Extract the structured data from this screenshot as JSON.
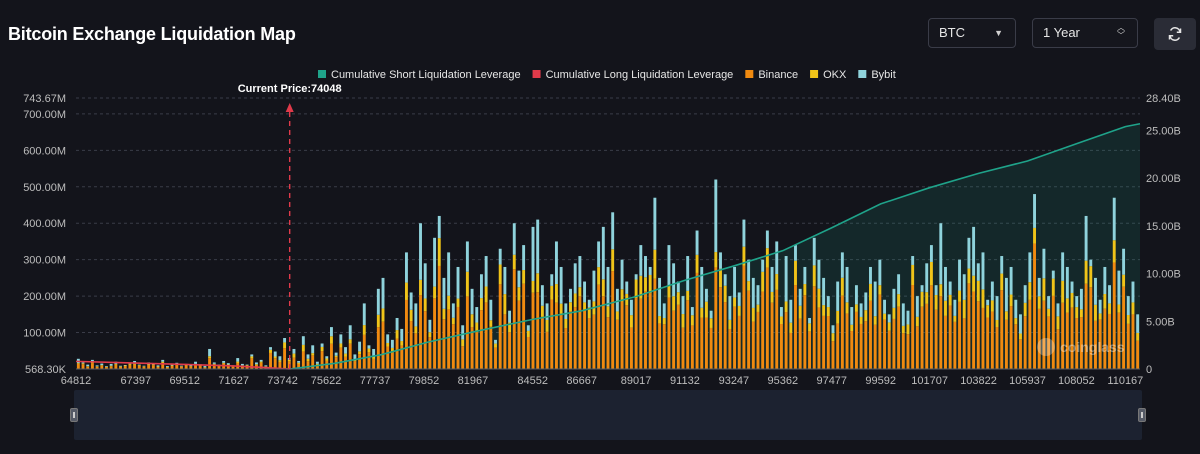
{
  "header": {
    "title": "Bitcoin Exchange Liquidation Map",
    "coin_select": "BTC",
    "range_select": "1 Year"
  },
  "watermark": "coinglass",
  "colors": {
    "cum_short": "#1fa38a",
    "cum_long": "#e03a4a",
    "binance": "#f08a10",
    "okx": "#f0c419",
    "bybit": "#8fd3dc",
    "current_price": "#e03a4a"
  },
  "chart_data": {
    "type": "bar",
    "title": "Bitcoin Exchange Liquidation Map",
    "legend": [
      {
        "name": "Cumulative Short Liquidation Leverage",
        "color": "#1fa38a"
      },
      {
        "name": "Cumulative Long Liquidation Leverage",
        "color": "#e03a4a"
      },
      {
        "name": "Binance",
        "color": "#f08a10"
      },
      {
        "name": "OKX",
        "color": "#f0c419"
      },
      {
        "name": "Bybit",
        "color": "#8fd3dc"
      }
    ],
    "legend_position": "top-center",
    "current_price_label": "Current Price:74048",
    "current_price": 74048,
    "x_range": [
      64812,
      110800
    ],
    "x_tick_labels": [
      "64812",
      "67397",
      "69512",
      "71627",
      "73742",
      "75622",
      "77737",
      "79852",
      "81967",
      "84552",
      "86667",
      "89017",
      "91132",
      "93247",
      "95362",
      "97477",
      "99592",
      "101707",
      "103822",
      "105937",
      "108052",
      "110167"
    ],
    "y_left_ticks": [
      "568.30K",
      "100.00M",
      "200.00M",
      "300.00M",
      "400.00M",
      "500.00M",
      "600.00M",
      "700.00M",
      "743.67M"
    ],
    "y_left_range": [
      0,
      743.67
    ],
    "y_right_ticks": [
      "0",
      "5.00B",
      "10.00B",
      "15.00B",
      "20.00B",
      "25.00B",
      "28.40B"
    ],
    "y_right_range": [
      0,
      28.4
    ],
    "grid": true,
    "bar_totals": [
      28,
      18,
      12,
      25,
      10,
      15,
      8,
      14,
      20,
      9,
      11,
      16,
      22,
      12,
      9,
      18,
      14,
      10,
      25,
      8,
      12,
      17,
      9,
      14,
      11,
      20,
      13,
      8,
      55,
      18,
      12,
      22,
      16,
      10,
      30,
      14,
      12,
      40,
      18,
      25,
      10,
      60,
      48,
      35,
      85,
      30,
      55,
      22,
      90,
      40,
      65,
      20,
      70,
      35,
      115,
      45,
      95,
      60,
      120,
      40,
      75,
      180,
      65,
      55,
      220,
      250,
      95,
      80,
      140,
      110,
      320,
      210,
      180,
      400,
      290,
      135,
      360,
      420,
      250,
      320,
      180,
      280,
      120,
      350,
      220,
      170,
      260,
      310,
      190,
      80,
      330,
      280,
      160,
      400,
      270,
      340,
      120,
      390,
      410,
      230,
      180,
      260,
      350,
      280,
      180,
      220,
      290,
      310,
      240,
      190,
      270,
      350,
      390,
      280,
      430,
      220,
      300,
      240,
      190,
      260,
      340,
      310,
      280,
      470,
      250,
      180,
      340,
      290,
      240,
      200,
      310,
      170,
      380,
      280,
      220,
      160,
      520,
      320,
      260,
      200,
      280,
      210,
      410,
      300,
      250,
      230,
      300,
      380,
      280,
      350,
      170,
      310,
      190,
      340,
      220,
      280,
      140,
      360,
      300,
      250,
      200,
      120,
      240,
      320,
      280,
      170,
      230,
      180,
      210,
      280,
      240,
      300,
      190,
      150,
      220,
      260,
      180,
      160,
      310,
      200,
      230,
      290,
      340,
      230,
      400,
      280,
      240,
      190,
      300,
      260,
      360,
      390,
      290,
      320,
      190,
      240,
      200,
      310,
      250,
      280,
      190,
      150,
      230,
      320,
      480,
      250,
      330,
      200,
      270,
      180,
      320,
      280,
      240,
      200,
      220,
      420,
      300,
      250,
      190,
      280,
      230,
      470,
      270,
      330,
      200,
      240,
      150
    ],
    "cum_short_series": [
      [
        74048,
        0
      ],
      [
        76000,
        0.6
      ],
      [
        78000,
        1.5
      ],
      [
        80000,
        2.8
      ],
      [
        82000,
        3.9
      ],
      [
        84552,
        5.2
      ],
      [
        86667,
        6.1
      ],
      [
        89017,
        7.6
      ],
      [
        91132,
        9.3
      ],
      [
        93247,
        10.8
      ],
      [
        95362,
        12.4
      ],
      [
        97477,
        14.8
      ],
      [
        99592,
        17.3
      ],
      [
        101707,
        19.0
      ],
      [
        103822,
        20.5
      ],
      [
        105937,
        21.8
      ],
      [
        108052,
        23.6
      ],
      [
        110167,
        25.4
      ],
      [
        110800,
        25.7
      ]
    ],
    "cum_long_series": [
      [
        64812,
        0.8
      ],
      [
        67000,
        0.65
      ],
      [
        69512,
        0.48
      ],
      [
        71627,
        0.32
      ],
      [
        73000,
        0.15
      ],
      [
        74048,
        0
      ]
    ]
  }
}
